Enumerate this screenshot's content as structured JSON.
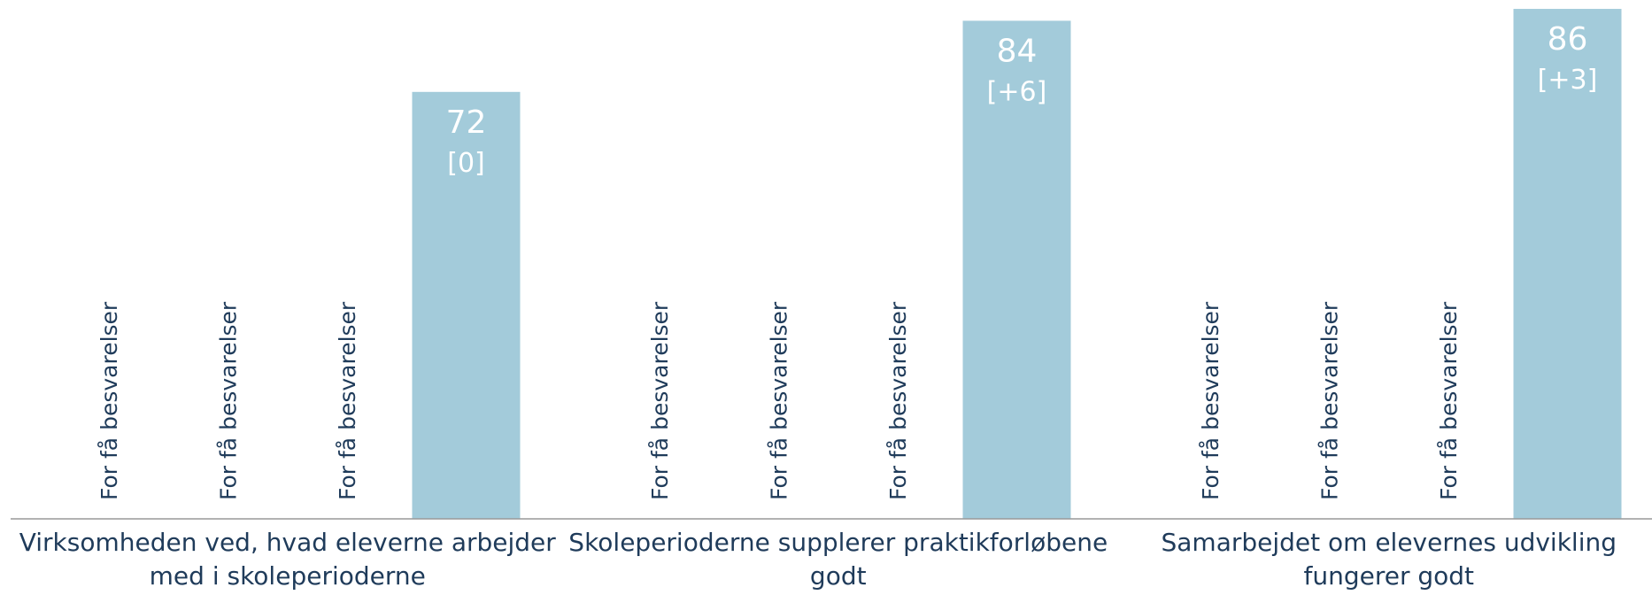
{
  "chart_data": {
    "type": "bar",
    "categories": [
      "Virksomheden ved, hvad eleverne arbejder med i skoleperioderne",
      "Skoleperioderne supplerer praktikforløbene godt",
      "Samarbejdet om elevernes udvikling fungerer godt"
    ],
    "series": [
      {
        "values": [
          null,
          null,
          null
        ],
        "value_labels": [
          "For få besvarelser",
          "For få besvarelser",
          "For få besvarelser"
        ]
      },
      {
        "values": [
          null,
          null,
          null
        ],
        "value_labels": [
          "For få besvarelser",
          "For få besvarelser",
          "For få besvarelser"
        ]
      },
      {
        "values": [
          null,
          null,
          null
        ],
        "value_labels": [
          "For få besvarelser",
          "For få besvarelser",
          "For få besvarelser"
        ]
      },
      {
        "color": "#a3cbda",
        "values": [
          72,
          84,
          86
        ],
        "annotations": [
          "[0]",
          "[+6]",
          "[+3]"
        ]
      }
    ],
    "ylim": [
      0,
      87.5
    ]
  }
}
